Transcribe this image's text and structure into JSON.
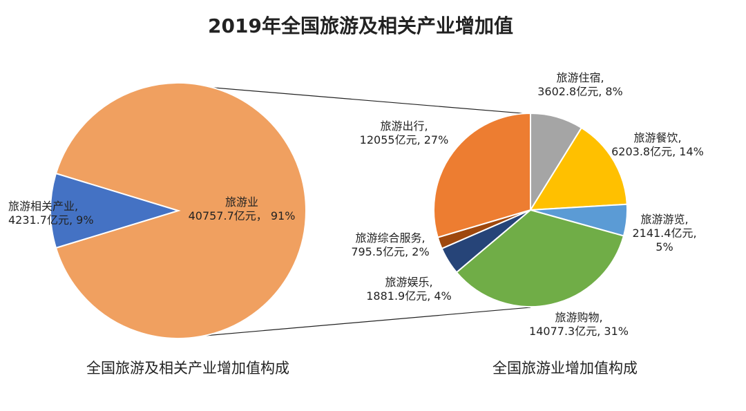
{
  "title": "2019年全国旅游及相关产业增加值",
  "chart_data": [
    {
      "type": "pie",
      "title": "全国旅游及相关产业增加值构成",
      "unit": "亿元",
      "slices": [
        {
          "name": "旅游业",
          "value": 40757.7,
          "value_text": "40757.7亿元",
          "pct_text": "91%",
          "color": "#F0A060"
        },
        {
          "name": "旅游相关产业",
          "value": 4231.7,
          "value_text": "4231.7亿元",
          "pct_text": "9%",
          "color": "#4472C4"
        }
      ]
    },
    {
      "type": "pie",
      "title": "全国旅游业增加值构成",
      "unit": "亿元",
      "slices": [
        {
          "name": "旅游住宿",
          "value": 3602.8,
          "value_text": "3602.8亿元",
          "pct_text": "8%",
          "color": "#A5A5A5"
        },
        {
          "name": "旅游餐饮",
          "value": 6203.8,
          "value_text": "6203.8亿元",
          "pct_text": "14%",
          "color": "#FFC000"
        },
        {
          "name": "旅游游览",
          "value": 2141.4,
          "value_text": "2141.4亿元",
          "pct_text": "5%",
          "color": "#5B9BD5"
        },
        {
          "name": "旅游购物",
          "value": 14077.3,
          "value_text": "14077.3亿元",
          "pct_text": "31%",
          "color": "#70AD47"
        },
        {
          "name": "旅游娱乐",
          "value": 1881.9,
          "value_text": "1881.9亿元",
          "pct_text": "4%",
          "color": "#264478"
        },
        {
          "name": "旅游综合服务",
          "value": 795.5,
          "value_text": "795.5亿元",
          "pct_text": "2%",
          "color": "#9E480E"
        },
        {
          "name": "旅游出行",
          "value": 12055,
          "value_text": "12055亿元",
          "pct_text": "27%",
          "color": "#ED7D31"
        }
      ]
    }
  ]
}
